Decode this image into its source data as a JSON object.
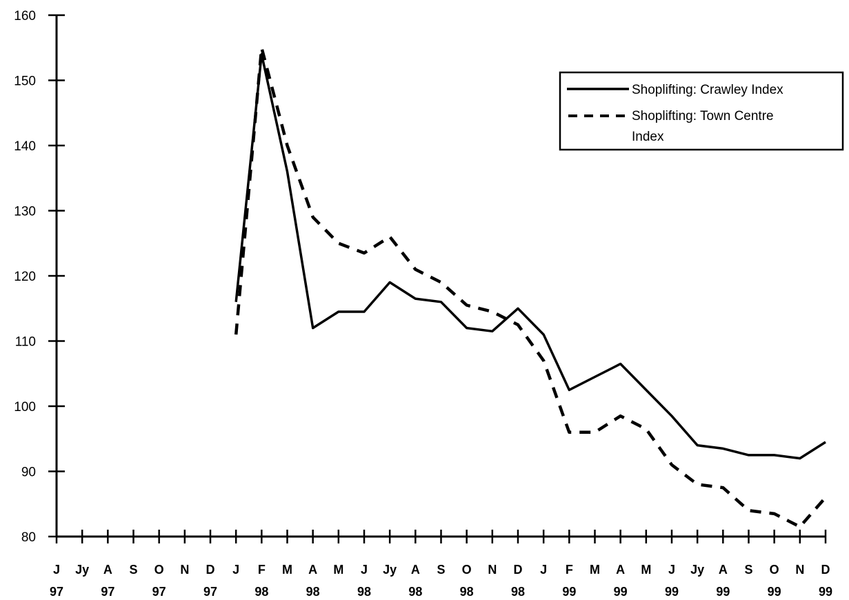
{
  "chart_data": {
    "type": "line",
    "title": "",
    "xlabel": "",
    "ylabel": "",
    "ylim": [
      80,
      160
    ],
    "yticks": [
      80,
      90,
      100,
      110,
      120,
      130,
      140,
      150,
      160
    ],
    "categories": [
      {
        "month": "J",
        "year": "97"
      },
      {
        "month": "Jy",
        "year": ""
      },
      {
        "month": "A",
        "year": "97"
      },
      {
        "month": "S",
        "year": ""
      },
      {
        "month": "O",
        "year": "97"
      },
      {
        "month": "N",
        "year": ""
      },
      {
        "month": "D",
        "year": "97"
      },
      {
        "month": "J",
        "year": ""
      },
      {
        "month": "F",
        "year": "98"
      },
      {
        "month": "M",
        "year": ""
      },
      {
        "month": "A",
        "year": "98"
      },
      {
        "month": "M",
        "year": ""
      },
      {
        "month": "J",
        "year": "98"
      },
      {
        "month": "Jy",
        "year": ""
      },
      {
        "month": "A",
        "year": "98"
      },
      {
        "month": "S",
        "year": ""
      },
      {
        "month": "O",
        "year": "98"
      },
      {
        "month": "N",
        "year": ""
      },
      {
        "month": "D",
        "year": "98"
      },
      {
        "month": "J",
        "year": ""
      },
      {
        "month": "F",
        "year": "99"
      },
      {
        "month": "M",
        "year": ""
      },
      {
        "month": "A",
        "year": "99"
      },
      {
        "month": "M",
        "year": ""
      },
      {
        "month": "J",
        "year": "99"
      },
      {
        "month": "Jy",
        "year": ""
      },
      {
        "month": "A",
        "year": "99"
      },
      {
        "month": "S",
        "year": ""
      },
      {
        "month": "O",
        "year": "99"
      },
      {
        "month": "N",
        "year": ""
      },
      {
        "month": "D",
        "year": "99"
      }
    ],
    "series": [
      {
        "name": "Shoplifting: Crawley Index",
        "style": "solid",
        "values": [
          null,
          null,
          null,
          null,
          null,
          null,
          null,
          116,
          154,
          136,
          112,
          114.5,
          114.5,
          119,
          116.5,
          116,
          112,
          111.5,
          115,
          111,
          102.5,
          104.5,
          106.5,
          102.5,
          98.5,
          94,
          93.5,
          92.5,
          92.5,
          92,
          94.5
        ]
      },
      {
        "name": "Shoplifting: Town Centre Index",
        "style": "dashed",
        "values": [
          null,
          null,
          null,
          null,
          null,
          null,
          null,
          111,
          155,
          140,
          129,
          125,
          123.5,
          126,
          121,
          119,
          115.5,
          114.5,
          112.5,
          107,
          96,
          96,
          98.5,
          96.5,
          91,
          88,
          87.5,
          84,
          83.5,
          81.5,
          86
        ]
      }
    ],
    "legend": {
      "position": "top-right",
      "entries": [
        {
          "label_line1": "Shoplifting:  Crawley  Index",
          "label_line2": ""
        },
        {
          "label_line1": "Shoplifting:  Town  Centre",
          "label_line2": "Index"
        }
      ]
    },
    "grid": false
  }
}
